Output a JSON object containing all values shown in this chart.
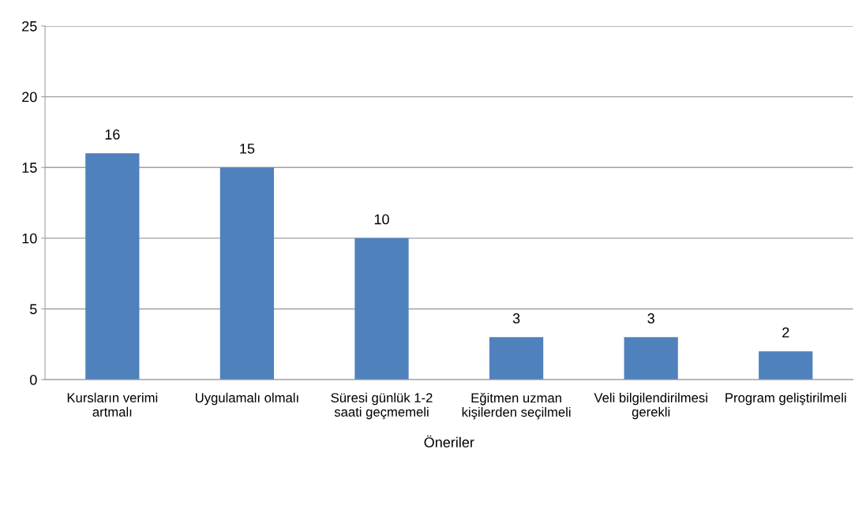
{
  "chart_data": {
    "type": "bar",
    "xlabel": "Öneriler",
    "categories": [
      "Kursların verimi\nartmalı",
      "Uygulamalı olmalı",
      "Süresi günlük 1-2\nsaati geçmemeli",
      "Eğitmen uzman\nkişilerden seçilmeli",
      "Veli bilgilendirilmesi\ngerekli",
      "Program geliştirilmeli"
    ],
    "values": [
      16,
      15,
      10,
      3,
      3,
      2
    ],
    "color": "#4f81bd",
    "ylim": [
      0,
      25
    ],
    "yticks": [
      0,
      5,
      10,
      15,
      20,
      25
    ],
    "grid": "y",
    "data_labels": true
  }
}
